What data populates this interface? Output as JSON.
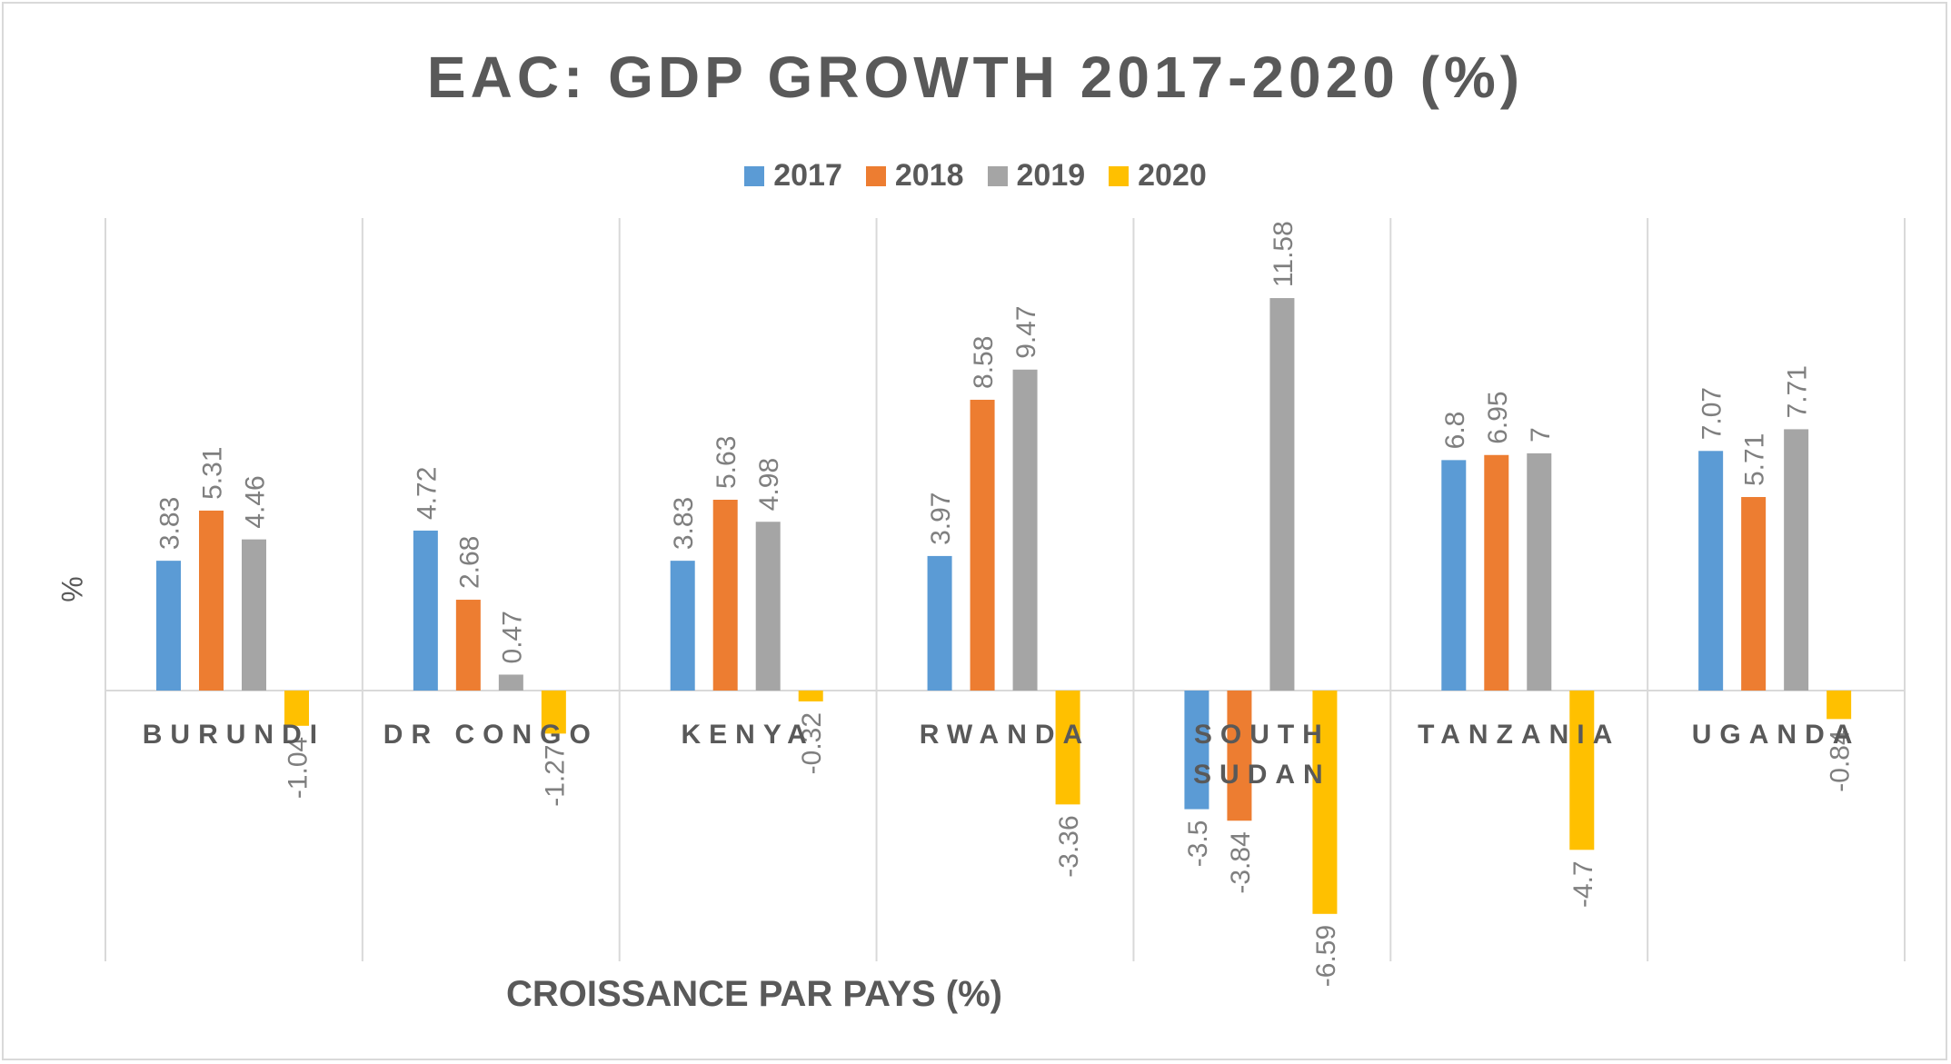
{
  "chart_data": {
    "type": "bar",
    "title": "EAC: GDP GROWTH 2017-2020 (%)",
    "xlabel": "CROISSANCE PAR PAYS (%)",
    "ylabel": "%",
    "categories": [
      "BURUNDI",
      "DR CONGO",
      "KENYA",
      "RWANDA",
      "SOUTH SUDAN",
      "TANZANIA",
      "UGANDA"
    ],
    "series": [
      {
        "name": "2017",
        "color": "#5b9bd5",
        "values": [
          3.83,
          4.72,
          3.83,
          3.97,
          -3.5,
          6.8,
          7.07
        ]
      },
      {
        "name": "2018",
        "color": "#ed7d31",
        "values": [
          5.31,
          2.68,
          5.63,
          8.58,
          -3.84,
          6.95,
          5.71
        ]
      },
      {
        "name": "2019",
        "color": "#a5a5a5",
        "values": [
          4.46,
          0.47,
          4.98,
          9.47,
          11.58,
          7,
          7.71
        ]
      },
      {
        "name": "2020",
        "color": "#ffc000",
        "values": [
          -1.04,
          -1.27,
          -0.32,
          -3.36,
          -6.59,
          -4.7,
          -0.84
        ]
      }
    ],
    "ylim": [
      -8,
      14
    ],
    "grid": "vertical category separators",
    "legend": "top-center"
  }
}
